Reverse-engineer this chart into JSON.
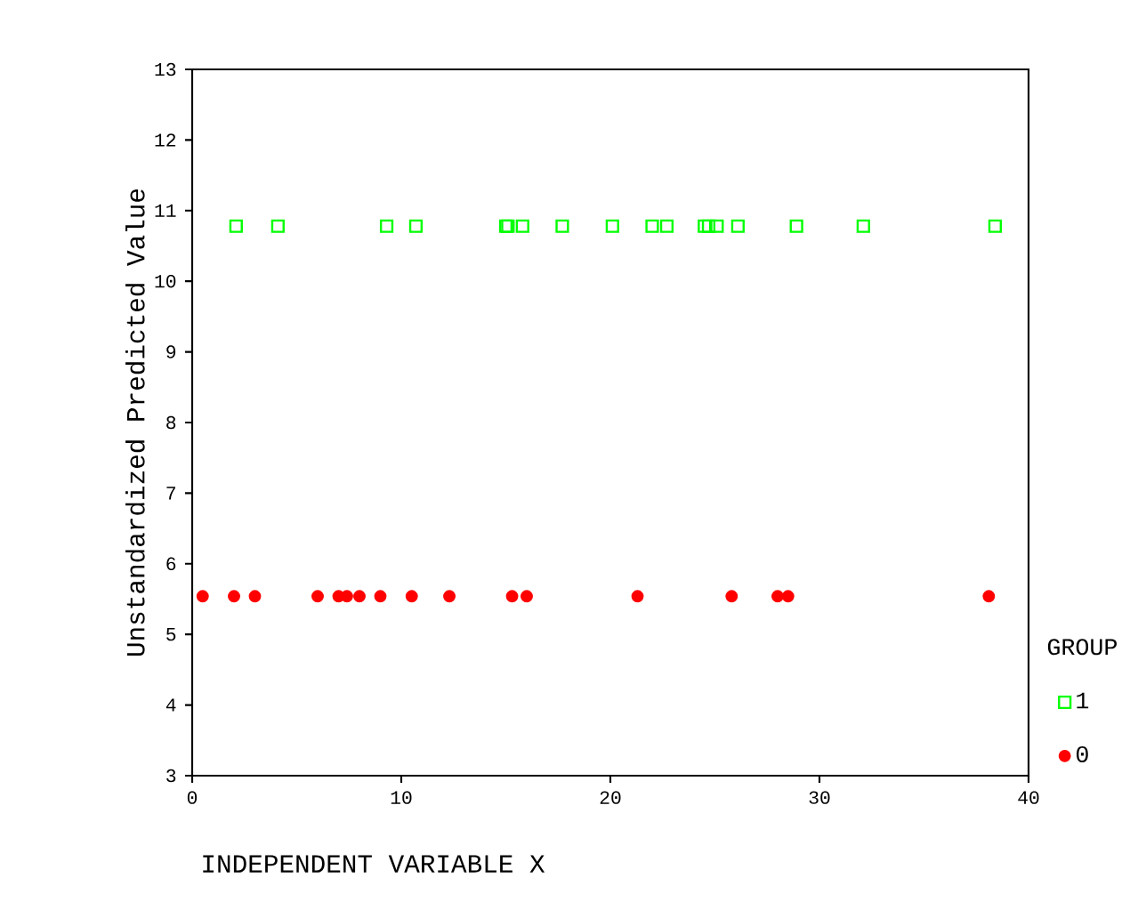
{
  "chart_data": {
    "type": "scatter",
    "xlabel": "INDEPENDENT VARIABLE X",
    "ylabel": "Unstandardized Predicted Value",
    "legend_title": "GROUP",
    "legend": "right",
    "grid": false,
    "xlim": [
      0,
      40
    ],
    "xticks": [
      0,
      10,
      20,
      30,
      40
    ],
    "ylim": [
      3,
      13
    ],
    "yticks": [
      3,
      4,
      5,
      6,
      7,
      8,
      9,
      10,
      11,
      12,
      13
    ],
    "series": [
      {
        "name": "1",
        "color": "#00ff00",
        "marker": "square",
        "x": [
          2.1,
          4.1,
          9.3,
          10.7,
          15.0,
          15.1,
          15.8,
          17.7,
          20.1,
          22.0,
          22.7,
          24.5,
          24.7,
          25.1,
          26.1,
          28.9,
          32.1,
          38.4
        ],
        "values": [
          10.78,
          10.78,
          10.78,
          10.78,
          10.78,
          10.78,
          10.78,
          10.78,
          10.78,
          10.78,
          10.78,
          10.78,
          10.78,
          10.78,
          10.78,
          10.78,
          10.78,
          10.78
        ]
      },
      {
        "name": "0",
        "color": "#ff0000",
        "marker": "circle",
        "x": [
          0.5,
          2.0,
          3.0,
          6.0,
          7.0,
          7.4,
          8.0,
          9.0,
          10.5,
          12.3,
          15.3,
          16.0,
          21.3,
          25.8,
          28.0,
          28.5,
          38.1
        ],
        "values": [
          5.54,
          5.54,
          5.54,
          5.54,
          5.54,
          5.54,
          5.54,
          5.54,
          5.54,
          5.54,
          5.54,
          5.54,
          5.54,
          5.54,
          5.54,
          5.54,
          5.54
        ]
      }
    ]
  }
}
